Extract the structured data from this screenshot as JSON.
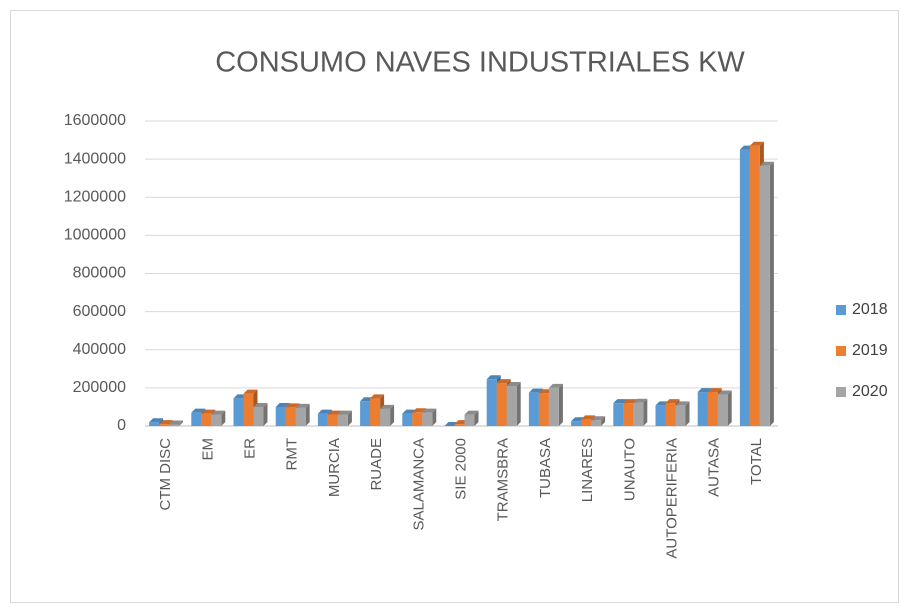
{
  "chart_data": {
    "type": "bar",
    "title": "CONSUMO NAVES INDUSTRIALES KW",
    "categories": [
      "CTM DISC",
      "EM",
      "ER",
      "RMT",
      "MURCIA",
      "RUADE",
      "SALAMANCA",
      "SIE 2000",
      "TRAMSBRA",
      "TUBASA",
      "LINARES",
      "UNAUTO",
      "AUTOPERIFERIA",
      "AUTASA",
      "TOTAL"
    ],
    "series": [
      {
        "name": "2018",
        "color": "#5b9bd5",
        "values": [
          20000,
          70000,
          145000,
          100000,
          65000,
          130000,
          65000,
          0,
          245000,
          175000,
          25000,
          120000,
          108000,
          178000,
          1450000
        ]
      },
      {
        "name": "2019",
        "color": "#ed7d31",
        "values": [
          10000,
          65000,
          170000,
          98000,
          60000,
          145000,
          72000,
          10000,
          225000,
          172000,
          35000,
          120000,
          120000,
          178000,
          1470000
        ]
      },
      {
        "name": "2020",
        "color": "#a5a5a5",
        "values": [
          8000,
          60000,
          100000,
          95000,
          60000,
          90000,
          70000,
          60000,
          210000,
          200000,
          30000,
          122000,
          108000,
          165000,
          1365000
        ]
      }
    ],
    "ylim": [
      0,
      1600000
    ],
    "yticks": [
      0,
      200000,
      400000,
      600000,
      800000,
      1000000,
      1200000,
      1400000,
      1600000
    ],
    "grid": true,
    "legend": "right"
  }
}
